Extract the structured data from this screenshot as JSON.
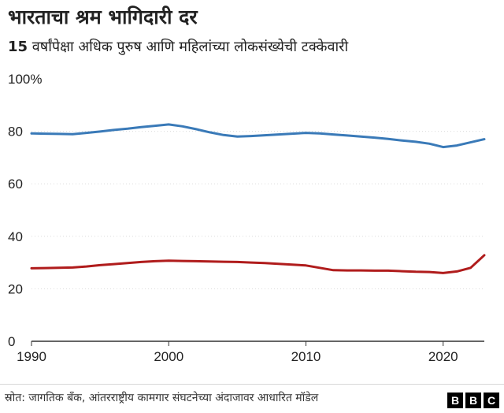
{
  "header": {
    "title": "भारताचा श्रम भागिदारी दर",
    "subtitle_number": "15",
    "subtitle_text": " वर्षांपेक्षा अधिक पुरुष आणि महिलांच्या लोकसंख्येची टक्केवारी"
  },
  "footer": {
    "source": "स्रोत: जागतिक बँक, आंतरराष्ट्रीय कामगार संघटनेच्या अंदाजावर आधारित मॉडेल",
    "logo_letters": [
      "B",
      "B",
      "C"
    ]
  },
  "chart_data": {
    "type": "line",
    "title": "भारताचा श्रम भागिदारी दर",
    "subtitle": "15 वर्षांपेक्षा अधिक पुरुष आणि महिलांच्या लोकसंख्येची टक्केवारी",
    "xlabel": "",
    "ylabel": "",
    "xlim": [
      1990,
      2023
    ],
    "ylim": [
      0,
      100
    ],
    "x_ticks": [
      1990,
      2000,
      2010,
      2020
    ],
    "y_ticks": [
      0,
      20,
      40,
      60,
      80,
      100
    ],
    "y_tick_labels": [
      "0",
      "20",
      "40",
      "60",
      "80",
      "100%"
    ],
    "grid": true,
    "series": [
      {
        "color": "#3a7ab8",
        "x": [
          1990,
          1991,
          1992,
          1993,
          1994,
          1995,
          1996,
          1997,
          1998,
          1999,
          2000,
          2001,
          2002,
          2003,
          2004,
          2005,
          2006,
          2007,
          2008,
          2009,
          2010,
          2011,
          2012,
          2013,
          2014,
          2015,
          2016,
          2017,
          2018,
          2019,
          2020,
          2021,
          2022,
          2023
        ],
        "values": [
          79.2,
          79.1,
          79.0,
          78.9,
          79.4,
          79.9,
          80.5,
          81.0,
          81.6,
          82.1,
          82.6,
          81.9,
          80.8,
          79.6,
          78.6,
          78.0,
          78.2,
          78.5,
          78.8,
          79.1,
          79.4,
          79.2,
          78.8,
          78.4,
          78.0,
          77.6,
          77.1,
          76.5,
          76.0,
          75.3,
          74.0,
          74.6,
          75.8,
          77.0
        ]
      },
      {
        "color": "#b01c1c",
        "x": [
          1990,
          1991,
          1992,
          1993,
          1994,
          1995,
          1996,
          1997,
          1998,
          1999,
          2000,
          2001,
          2002,
          2003,
          2004,
          2005,
          2006,
          2007,
          2008,
          2009,
          2010,
          2011,
          2012,
          2013,
          2014,
          2015,
          2016,
          2017,
          2018,
          2019,
          2020,
          2021,
          2022,
          2023
        ],
        "values": [
          27.8,
          27.9,
          28.0,
          28.1,
          28.5,
          29.0,
          29.4,
          29.8,
          30.2,
          30.5,
          30.7,
          30.6,
          30.5,
          30.4,
          30.3,
          30.2,
          30.0,
          29.8,
          29.5,
          29.2,
          28.9,
          28.0,
          27.1,
          27.0,
          27.0,
          26.9,
          26.9,
          26.7,
          26.5,
          26.4,
          26.0,
          26.6,
          28.0,
          32.8
        ]
      }
    ]
  }
}
